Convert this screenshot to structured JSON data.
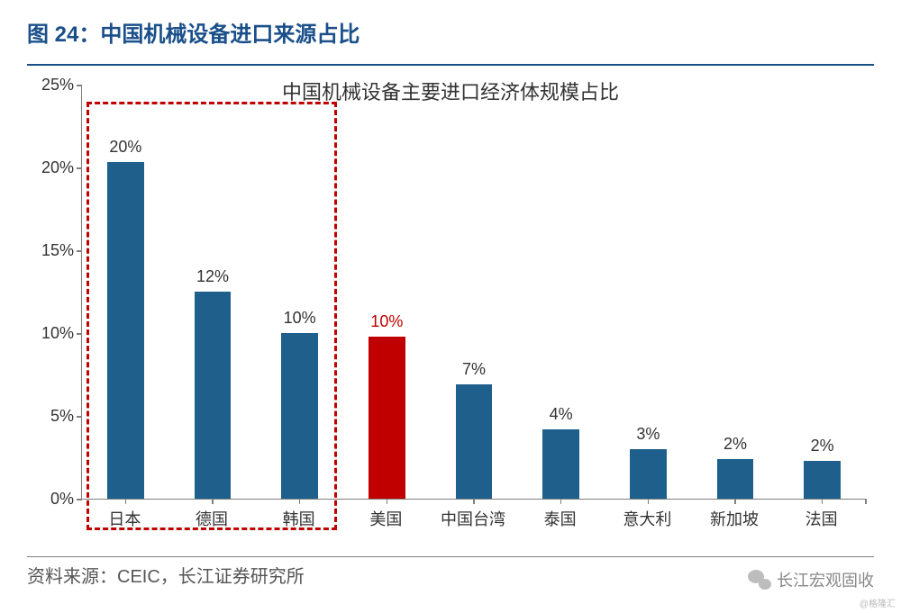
{
  "header": {
    "title": "图 24：中国机械设备进口来源占比"
  },
  "chart": {
    "type": "bar",
    "title": "中国机械设备主要进口经济体规模占比",
    "title_fontsize": 22,
    "label_fontsize": 18,
    "ylim": [
      0,
      25
    ],
    "ytick_step": 5,
    "ytick_suffix": "%",
    "categories": [
      "日本",
      "德国",
      "韩国",
      "美国",
      "中国台湾",
      "泰国",
      "意大利",
      "新加坡",
      "法国"
    ],
    "values": [
      20.3,
      12.5,
      10.0,
      9.8,
      6.9,
      4.2,
      3.0,
      2.4,
      2.3
    ],
    "value_labels": [
      "20%",
      "12%",
      "10%",
      "10%",
      "7%",
      "4%",
      "3%",
      "2%",
      "2%"
    ],
    "bar_colors": [
      "#1f5f8b",
      "#1f5f8b",
      "#1f5f8b",
      "#c00000",
      "#1f5f8b",
      "#1f5f8b",
      "#1f5f8b",
      "#1f5f8b",
      "#1f5f8b"
    ],
    "label_colors": [
      "#333333",
      "#333333",
      "#333333",
      "#c00000",
      "#333333",
      "#333333",
      "#333333",
      "#333333",
      "#333333"
    ],
    "bar_width_ratio": 0.42,
    "axis_color": "#808080",
    "background_color": "#ffffff",
    "highlight": {
      "color": "#c00000",
      "dash": true,
      "covers_categories": [
        0,
        1,
        2
      ]
    }
  },
  "source": {
    "label": "资料来源：CEIC，长江证券研究所"
  },
  "watermark": {
    "text": "长江宏观固收",
    "icon": "wechat-icon"
  },
  "corner": {
    "text": "@格隆汇"
  }
}
